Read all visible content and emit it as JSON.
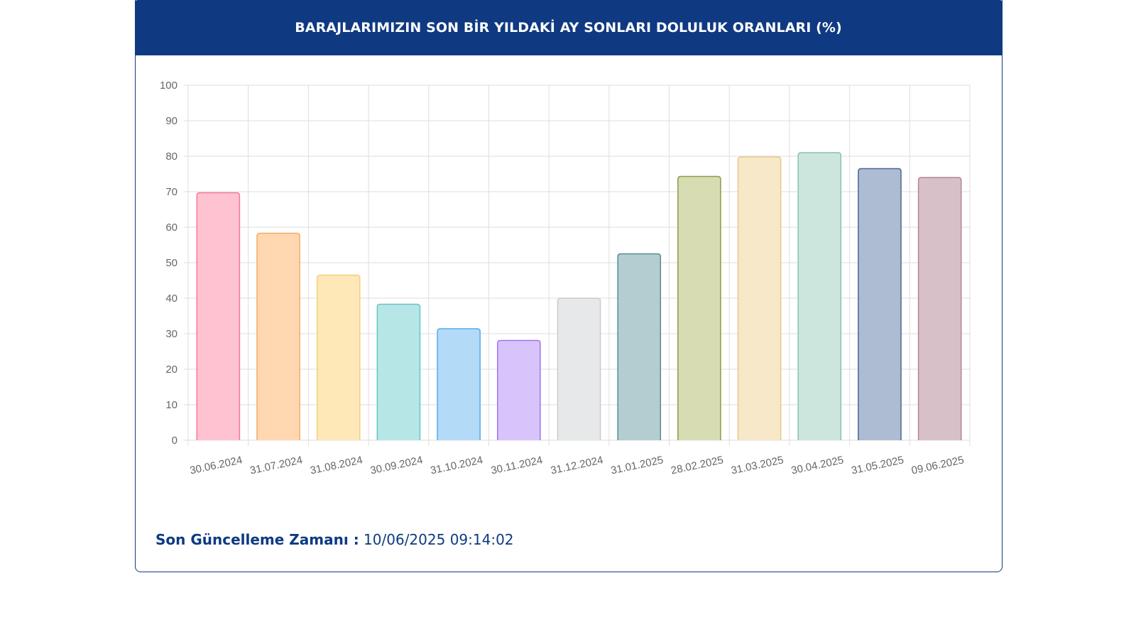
{
  "header": {
    "title": "BARAJLARIMIZIN SON BİR YILDAKİ AY SONLARI DOLULUK ORANLARI (%)"
  },
  "footer": {
    "label": "Son Güncelleme Zamanı :",
    "value": " 10/06/2025 09:14:02"
  },
  "chart_data": {
    "type": "bar",
    "title": "BARAJLARIMIZIN SON BİR YILDAKİ AY SONLARI DOLULUK ORANLARI (%)",
    "xlabel": "",
    "ylabel": "",
    "ylim": [
      0,
      100
    ],
    "yticks": [
      0,
      10,
      20,
      30,
      40,
      50,
      60,
      70,
      80,
      90,
      100
    ],
    "grid": true,
    "legend": "none",
    "categories": [
      "30.06.2024",
      "31.07.2024",
      "31.08.2024",
      "30.09.2024",
      "31.10.2024",
      "30.11.2024",
      "31.12.2024",
      "31.01.2025",
      "28.02.2025",
      "31.03.2025",
      "30.04.2025",
      "31.05.2025",
      "09.06.2025"
    ],
    "values": [
      69.7,
      58.3,
      46.5,
      38.3,
      31.4,
      28.1,
      40.0,
      52.5,
      74.3,
      79.8,
      81.0,
      76.5,
      74.0
    ],
    "colors": [
      {
        "fill": "#ffc2d1",
        "stroke": "#f47a96"
      },
      {
        "fill": "#ffd8b1",
        "stroke": "#f5ab66"
      },
      {
        "fill": "#ffe8b8",
        "stroke": "#f5cf7a"
      },
      {
        "fill": "#b7e6e6",
        "stroke": "#63c7c7"
      },
      {
        "fill": "#b3daf7",
        "stroke": "#56acea"
      },
      {
        "fill": "#d8c4fa",
        "stroke": "#9f75ee"
      },
      {
        "fill": "#e7e8ea",
        "stroke": "#c9cbcf"
      },
      {
        "fill": "#b3cdd1",
        "stroke": "#5c8b93"
      },
      {
        "fill": "#d7dcb3",
        "stroke": "#8d9b45"
      },
      {
        "fill": "#f6e8c8",
        "stroke": "#e6cb87"
      },
      {
        "fill": "#cce6dd",
        "stroke": "#86c3ad"
      },
      {
        "fill": "#adbcd2",
        "stroke": "#4c6691"
      },
      {
        "fill": "#d8c0c8",
        "stroke": "#b38596"
      }
    ]
  }
}
